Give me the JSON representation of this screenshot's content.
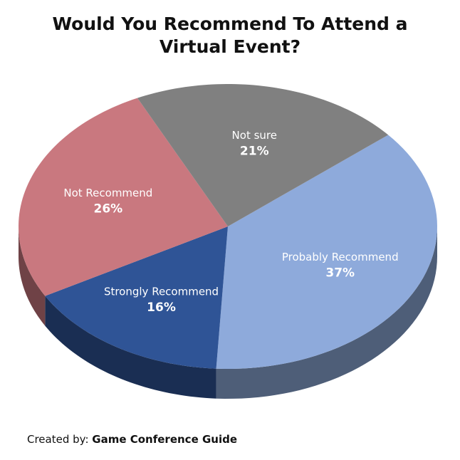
{
  "chart_data": {
    "type": "pie",
    "title": "Would You Recommend To Attend a Virtual Event?",
    "categories": [
      "Probably Recommend",
      "Strongly Recommend",
      "Not Recommend",
      "Not sure"
    ],
    "values": [
      37,
      16,
      26,
      21
    ],
    "value_labels": [
      "37%",
      "16%",
      "26%",
      "21%"
    ],
    "colors": [
      "#8eaadb",
      "#2f5496",
      "#c9787f",
      "#808080"
    ]
  },
  "credit": {
    "label": "Created by:",
    "name": "Game Conference Guide"
  }
}
